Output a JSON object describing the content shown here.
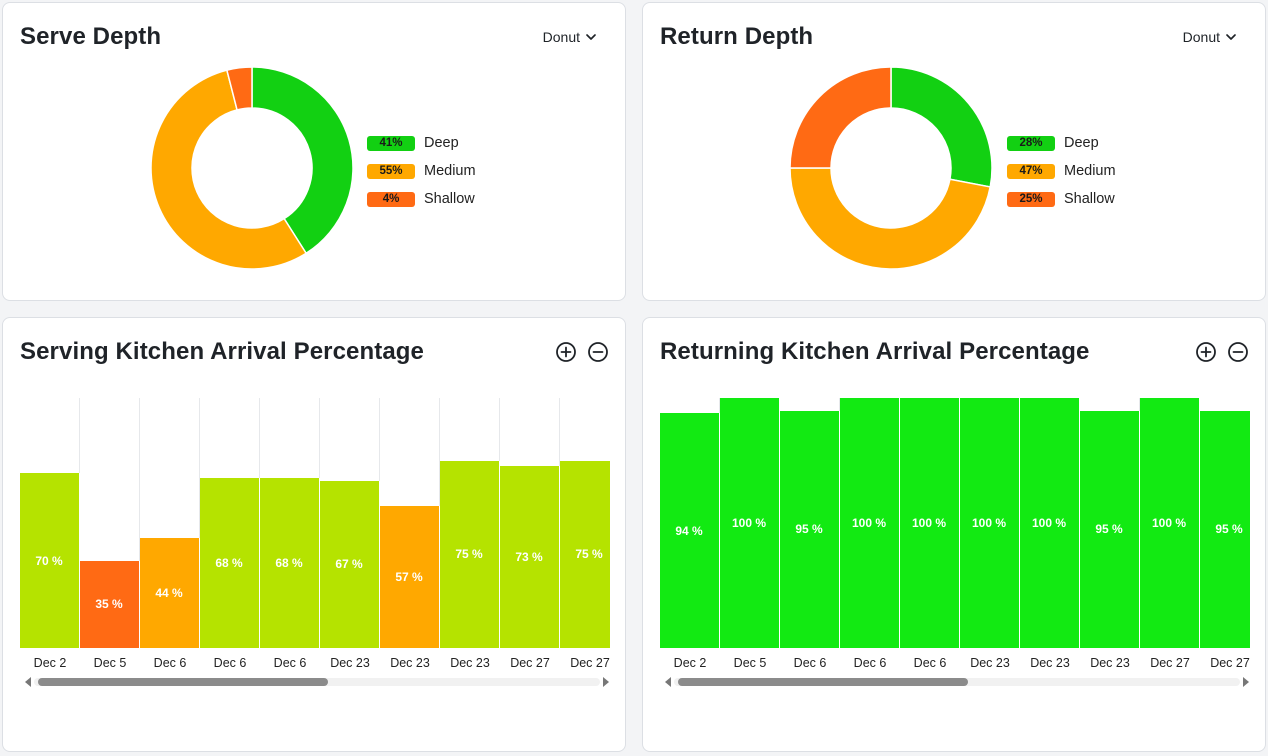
{
  "serve_depth": {
    "title": "Serve Depth",
    "dropdown_label": "Donut",
    "chart_data": {
      "type": "pie",
      "title": "Serve Depth",
      "donut": true,
      "categories": [
        "Deep",
        "Medium",
        "Shallow"
      ],
      "values": [
        41,
        55,
        4
      ],
      "value_labels": [
        "41%",
        "55%",
        "4%"
      ],
      "colors": [
        "#12d012",
        "#ffa800",
        "#ff6a14"
      ],
      "legend_position": "right"
    }
  },
  "return_depth": {
    "title": "Return Depth",
    "dropdown_label": "Donut",
    "chart_data": {
      "type": "pie",
      "title": "Return Depth",
      "donut": true,
      "categories": [
        "Deep",
        "Medium",
        "Shallow"
      ],
      "values": [
        28,
        47,
        25
      ],
      "value_labels": [
        "28%",
        "47%",
        "25%"
      ],
      "colors": [
        "#12d012",
        "#ffa800",
        "#ff6a14"
      ],
      "legend_position": "right"
    }
  },
  "serving_kitchen": {
    "title": "Serving Kitchen Arrival Percentage",
    "chart_data": {
      "type": "bar",
      "title": "Serving Kitchen Arrival Percentage",
      "categories": [
        "Dec 2",
        "Dec 5",
        "Dec 6",
        "Dec 6",
        "Dec 6",
        "Dec 23",
        "Dec 23",
        "Dec 23",
        "Dec 27",
        "Dec 27"
      ],
      "values": [
        70,
        35,
        44,
        68,
        68,
        67,
        57,
        75,
        73,
        75
      ],
      "value_labels": [
        "70 %",
        "35 %",
        "44 %",
        "68 %",
        "68 %",
        "67 %",
        "57 %",
        "75 %",
        "73 %",
        "75 %"
      ],
      "colors": [
        "#b5e300",
        "#ff6a14",
        "#ffa800",
        "#b5e300",
        "#b5e300",
        "#b5e300",
        "#ffa800",
        "#b5e300",
        "#b5e300",
        "#b5e300"
      ],
      "ylim": [
        0,
        100
      ],
      "grid": false,
      "scrollbar": {
        "thumb_start": 0.0,
        "thumb_end": 0.52
      }
    }
  },
  "returning_kitchen": {
    "title": "Returning Kitchen Arrival Percentage",
    "chart_data": {
      "type": "bar",
      "title": "Returning Kitchen Arrival Percentage",
      "categories": [
        "Dec 2",
        "Dec 5",
        "Dec 6",
        "Dec 6",
        "Dec 6",
        "Dec 23",
        "Dec 23",
        "Dec 23",
        "Dec 27",
        "Dec 27"
      ],
      "values": [
        94,
        100,
        95,
        100,
        100,
        100,
        100,
        95,
        100,
        95
      ],
      "value_labels": [
        "94 %",
        "100 %",
        "95 %",
        "100 %",
        "100 %",
        "100 %",
        "100 %",
        "95 %",
        "100 %",
        "95 %"
      ],
      "colors": [
        "#12ea12",
        "#12ea12",
        "#12ea12",
        "#12ea12",
        "#12ea12",
        "#12ea12",
        "#12ea12",
        "#12ea12",
        "#12ea12",
        "#12ea12"
      ],
      "ylim": [
        0,
        100
      ],
      "grid": false,
      "scrollbar": {
        "thumb_start": 0.0,
        "thumb_end": 0.52
      }
    }
  }
}
